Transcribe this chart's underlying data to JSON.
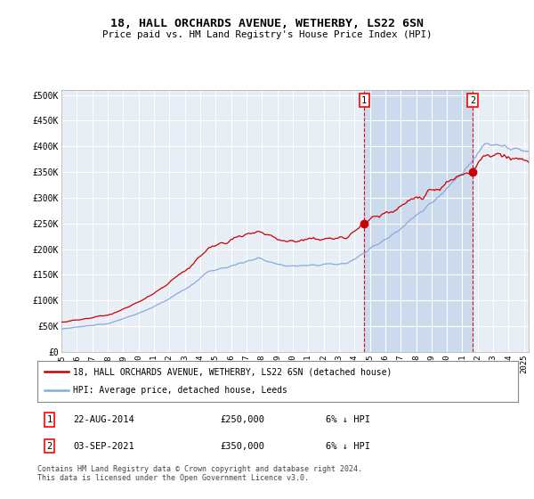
{
  "title": "18, HALL ORCHARDS AVENUE, WETHERBY, LS22 6SN",
  "subtitle": "Price paid vs. HM Land Registry's House Price Index (HPI)",
  "yticks": [
    0,
    50000,
    100000,
    150000,
    200000,
    250000,
    300000,
    350000,
    400000,
    450000,
    500000
  ],
  "ytick_labels": [
    "£0",
    "£50K",
    "£100K",
    "£150K",
    "£200K",
    "£250K",
    "£300K",
    "£350K",
    "£400K",
    "£450K",
    "£500K"
  ],
  "transaction1_x": 2014.64,
  "transaction2_x": 2021.67,
  "transaction1_price": 250000,
  "transaction2_price": 350000,
  "transaction1_date": "22-AUG-2014",
  "transaction2_date": "03-SEP-2021",
  "transaction1_hpi": "6% ↓ HPI",
  "transaction2_hpi": "6% ↓ HPI",
  "legend_property": "18, HALL ORCHARDS AVENUE, WETHERBY, LS22 6SN (detached house)",
  "legend_hpi": "HPI: Average price, detached house, Leeds",
  "footnote": "Contains HM Land Registry data © Crown copyright and database right 2024.\nThis data is licensed under the Open Government Licence v3.0.",
  "hpi_color": "#88aadd",
  "property_color": "#cc0000",
  "dashed_color": "#cc0000",
  "plot_bg_color": "#e8eef5",
  "highlight_color": "#ccdaee",
  "grid_color": "#ffffff",
  "fig_bg_color": "#ffffff",
  "ylim": [
    0,
    510000
  ],
  "xlim_start": 1995,
  "xlim_end": 2025.3
}
